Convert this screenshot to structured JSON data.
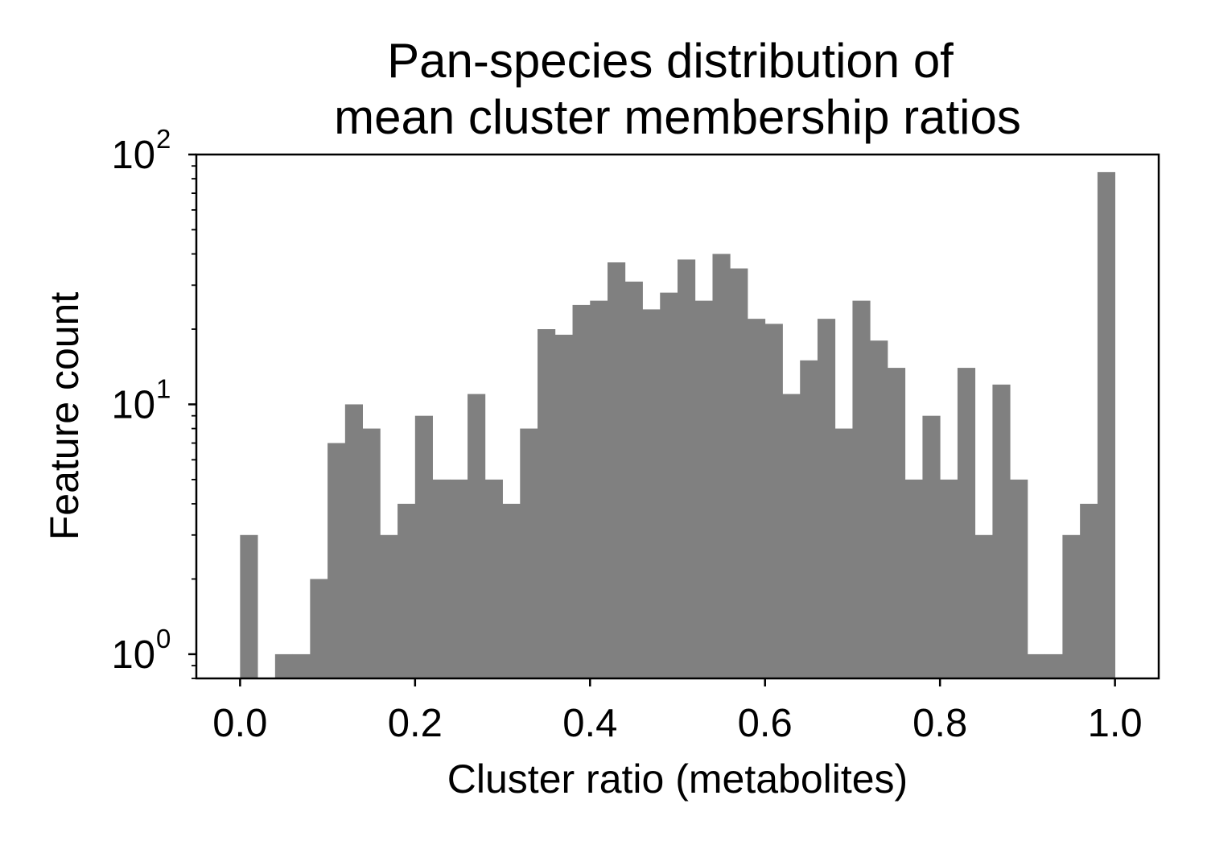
{
  "chart_data": {
    "type": "bar",
    "title_lines": [
      "Pan-species distribution of",
      "mean cluster membership ratios"
    ],
    "xlabel": "Cluster ratio (metabolites)",
    "ylabel": "Feature count",
    "x_scale": "linear",
    "y_scale": "log",
    "xlim": [
      -0.05,
      1.05
    ],
    "ylim": [
      0.8,
      100
    ],
    "grid": false,
    "legend": "none",
    "bar_color": "#808080",
    "x_ticks": [
      {
        "value": 0.0,
        "label": "0.0"
      },
      {
        "value": 0.2,
        "label": "0.2"
      },
      {
        "value": 0.4,
        "label": "0.4"
      },
      {
        "value": 0.6,
        "label": "0.6"
      },
      {
        "value": 0.8,
        "label": "0.8"
      },
      {
        "value": 1.0,
        "label": "1.0"
      }
    ],
    "y_ticks": [
      {
        "value": 1,
        "base": "10",
        "exp": "0"
      },
      {
        "value": 10,
        "base": "10",
        "exp": "1"
      },
      {
        "value": 100,
        "base": "10",
        "exp": "2"
      }
    ],
    "bin_start": 0.0,
    "bin_width": 0.02,
    "counts": [
      3,
      0,
      1,
      1,
      2,
      7,
      10,
      8,
      3,
      4,
      9,
      5,
      5,
      11,
      5,
      4,
      8,
      20,
      19,
      25,
      26,
      37,
      31,
      24,
      28,
      38,
      26,
      40,
      35,
      22,
      21,
      11,
      15,
      22,
      8,
      26,
      18,
      14,
      5,
      9,
      5,
      14,
      3,
      12,
      5,
      1,
      1,
      3,
      4,
      85
    ]
  }
}
